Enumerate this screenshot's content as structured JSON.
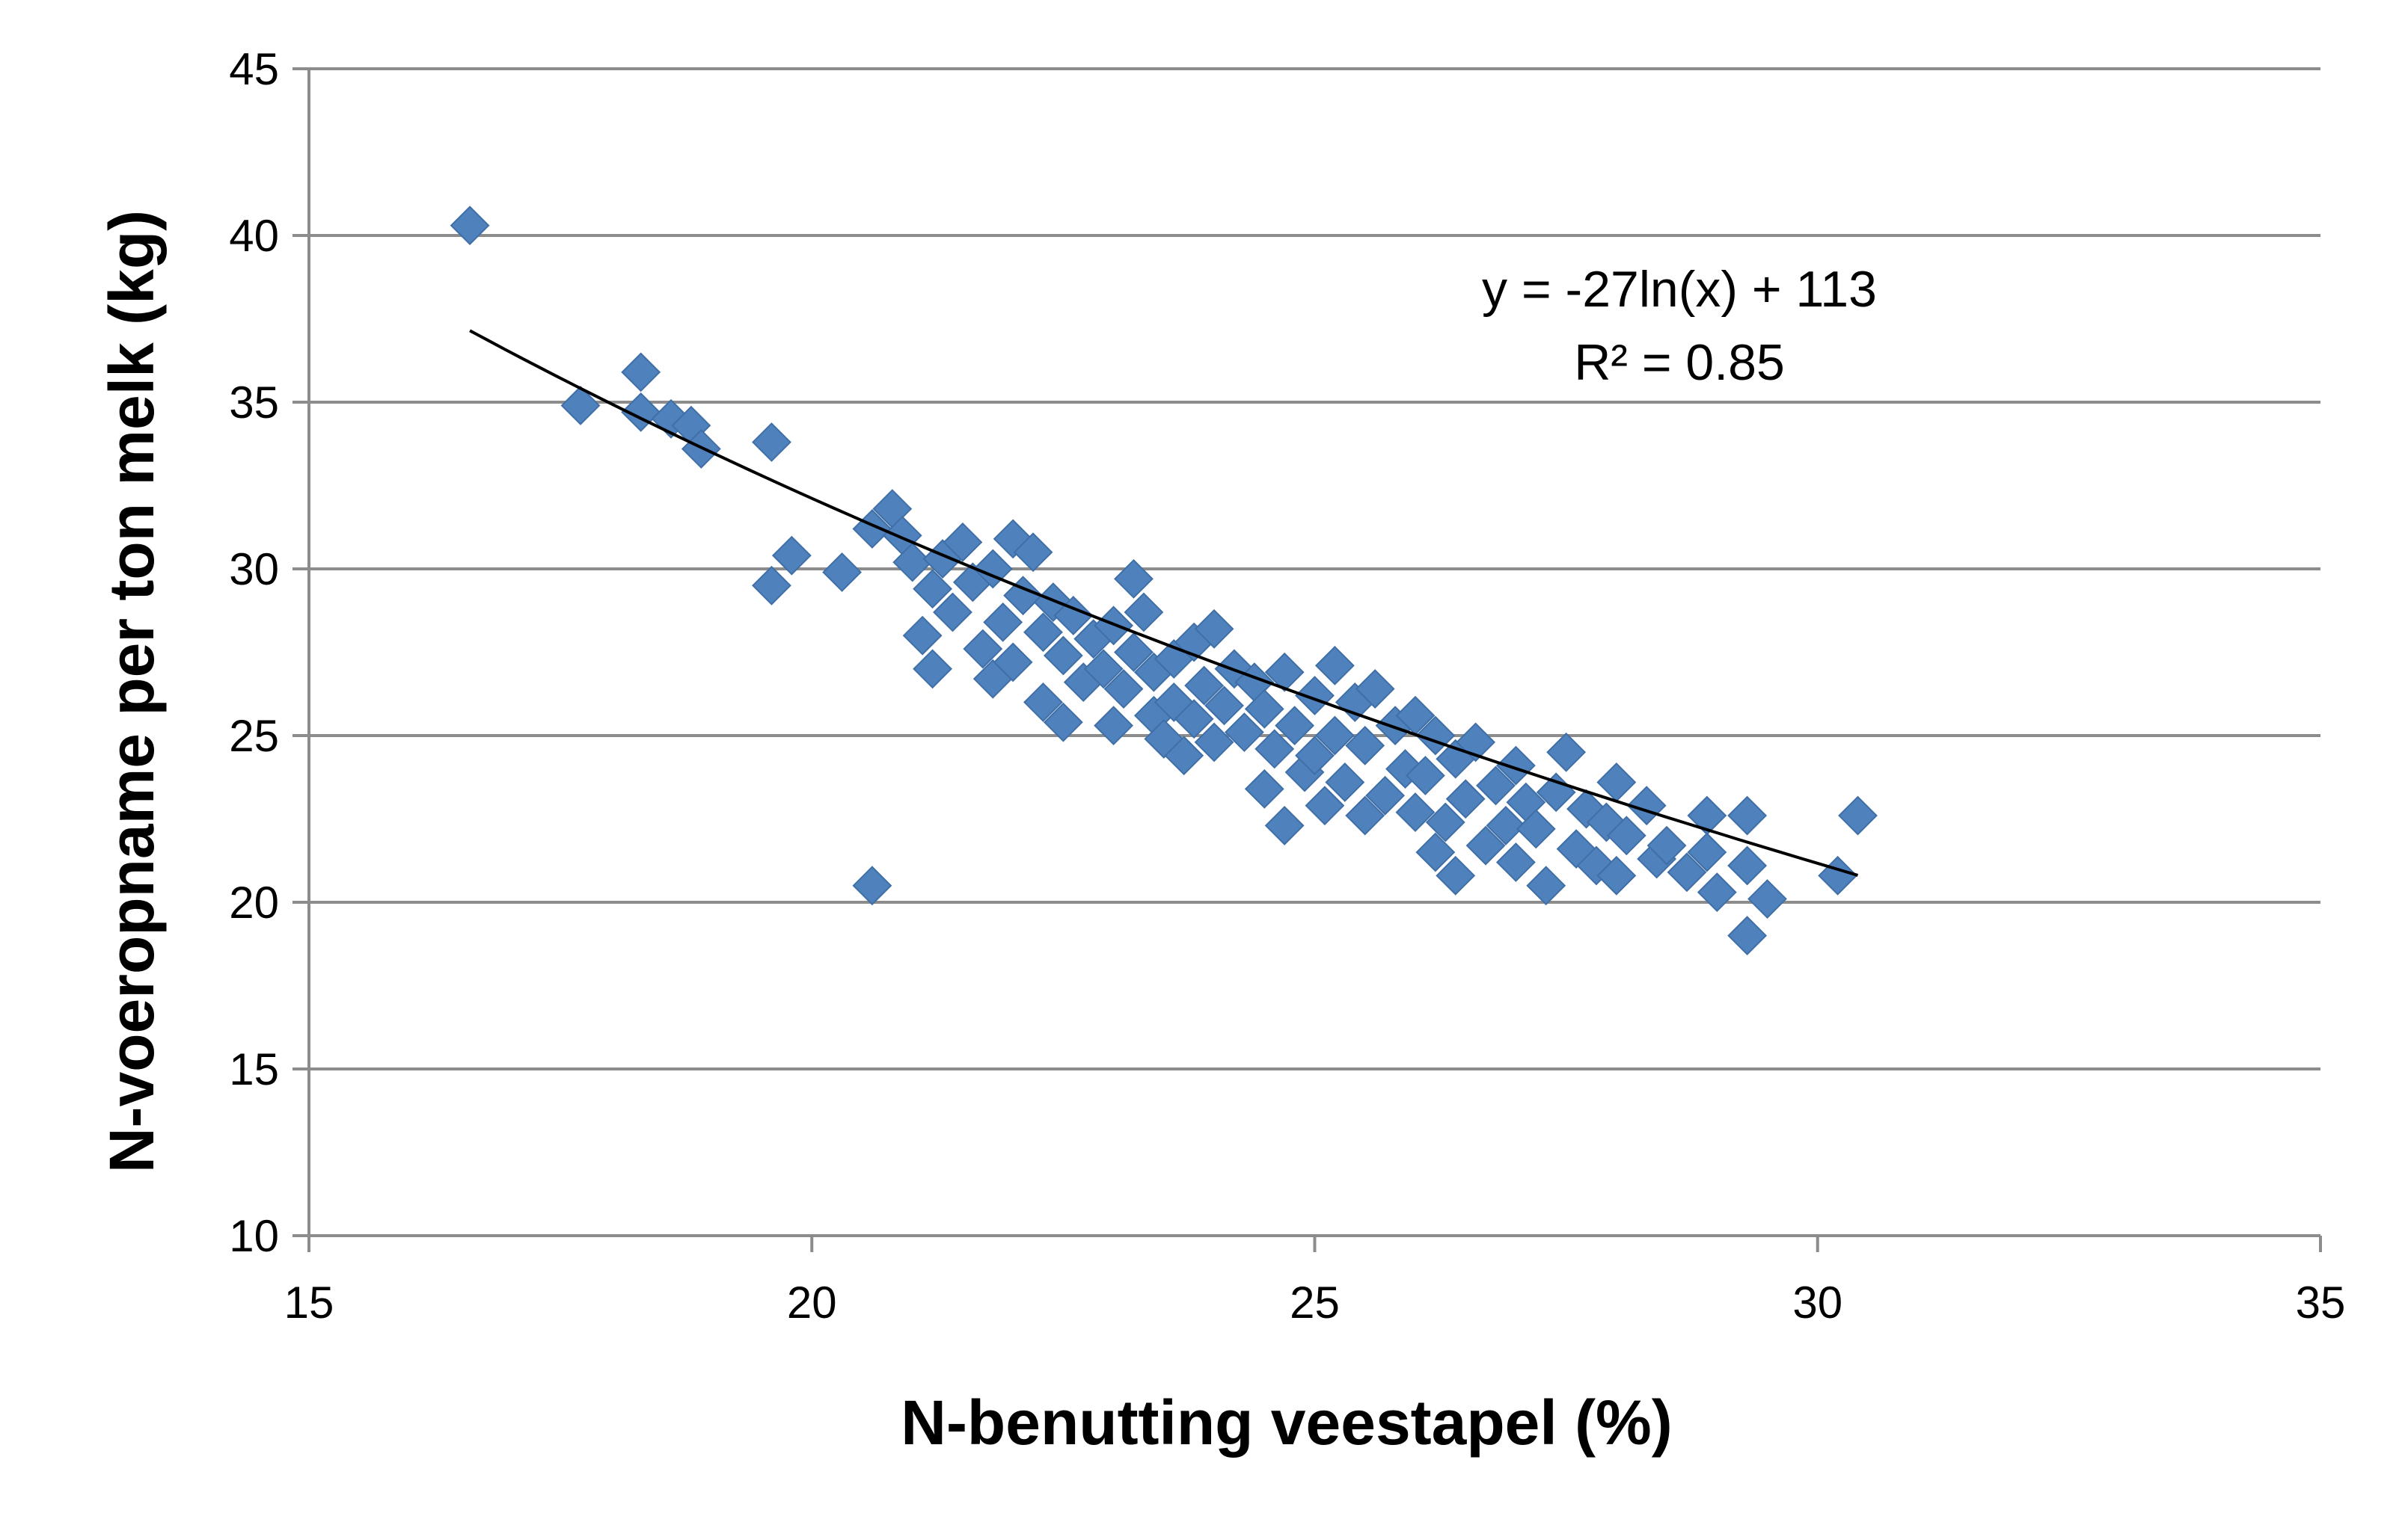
{
  "chart_data": {
    "type": "scatter",
    "xlabel": "N-benutting veestapel (%)",
    "ylabel": "N-voeropname per ton melk (kg)",
    "xlim": [
      15,
      35
    ],
    "ylim": [
      10,
      45
    ],
    "xticks": [
      "15",
      "20",
      "25",
      "30",
      "35"
    ],
    "yticks": [
      "10",
      "15",
      "20",
      "25",
      "30",
      "35",
      "40",
      "45"
    ],
    "grid": "horizontal",
    "marker": "diamond",
    "marker_color": "#4F81BD",
    "trend_color": "#000000",
    "trendline": {
      "type": "logarithmic",
      "a": -27,
      "b": 113,
      "x_range": [
        16.6,
        30.4
      ],
      "equation": "y = -27ln(x) + 113",
      "r2_label": "R² = 0.85"
    },
    "points": [
      [
        16.6,
        40.3
      ],
      [
        17.7,
        34.9
      ],
      [
        18.3,
        35.9
      ],
      [
        18.3,
        34.7
      ],
      [
        18.6,
        34.5
      ],
      [
        18.8,
        34.3
      ],
      [
        18.9,
        33.6
      ],
      [
        19.6,
        33.8
      ],
      [
        19.6,
        29.5
      ],
      [
        19.8,
        30.4
      ],
      [
        20.3,
        29.9
      ],
      [
        20.6,
        31.2
      ],
      [
        20.6,
        20.5
      ],
      [
        20.8,
        31.8
      ],
      [
        20.9,
        31.0
      ],
      [
        21.0,
        30.2
      ],
      [
        21.1,
        28.0
      ],
      [
        21.2,
        29.4
      ],
      [
        21.2,
        27.0
      ],
      [
        21.3,
        30.3
      ],
      [
        21.4,
        28.7
      ],
      [
        21.5,
        30.8
      ],
      [
        21.6,
        29.6
      ],
      [
        21.7,
        27.6
      ],
      [
        21.8,
        26.7
      ],
      [
        21.8,
        30.0
      ],
      [
        21.9,
        28.4
      ],
      [
        22.0,
        30.9
      ],
      [
        22.0,
        27.2
      ],
      [
        22.1,
        29.2
      ],
      [
        22.2,
        30.5
      ],
      [
        22.3,
        28.1
      ],
      [
        22.3,
        26.0
      ],
      [
        22.4,
        29.0
      ],
      [
        22.5,
        27.4
      ],
      [
        22.5,
        25.4
      ],
      [
        22.6,
        28.6
      ],
      [
        22.7,
        26.6
      ],
      [
        22.8,
        27.9
      ],
      [
        22.9,
        27.0
      ],
      [
        23.0,
        28.3
      ],
      [
        23.0,
        25.3
      ],
      [
        23.1,
        26.4
      ],
      [
        23.2,
        29.7
      ],
      [
        23.2,
        27.5
      ],
      [
        23.3,
        28.7
      ],
      [
        23.4,
        25.6
      ],
      [
        23.4,
        26.9
      ],
      [
        23.5,
        24.9
      ],
      [
        23.6,
        27.3
      ],
      [
        23.6,
        26.0
      ],
      [
        23.7,
        24.4
      ],
      [
        23.8,
        27.8
      ],
      [
        23.8,
        25.5
      ],
      [
        23.9,
        26.5
      ],
      [
        24.0,
        28.2
      ],
      [
        24.0,
        24.8
      ],
      [
        24.1,
        25.9
      ],
      [
        24.2,
        27.0
      ],
      [
        24.3,
        25.1
      ],
      [
        24.4,
        26.6
      ],
      [
        24.5,
        23.4
      ],
      [
        24.5,
        25.8
      ],
      [
        24.6,
        24.6
      ],
      [
        24.7,
        26.9
      ],
      [
        24.7,
        22.3
      ],
      [
        24.8,
        25.3
      ],
      [
        24.9,
        23.9
      ],
      [
        25.0,
        26.2
      ],
      [
        25.0,
        24.4
      ],
      [
        25.1,
        22.9
      ],
      [
        25.2,
        27.1
      ],
      [
        25.2,
        25.0
      ],
      [
        25.3,
        23.6
      ],
      [
        25.4,
        26.0
      ],
      [
        25.5,
        22.6
      ],
      [
        25.5,
        24.7
      ],
      [
        25.6,
        26.4
      ],
      [
        25.7,
        23.2
      ],
      [
        25.8,
        25.3
      ],
      [
        25.9,
        24.0
      ],
      [
        26.0,
        22.7
      ],
      [
        26.0,
        25.6
      ],
      [
        26.1,
        23.8
      ],
      [
        26.2,
        25.0
      ],
      [
        26.2,
        21.5
      ],
      [
        26.3,
        22.4
      ],
      [
        26.4,
        24.3
      ],
      [
        26.4,
        20.8
      ],
      [
        26.5,
        23.1
      ],
      [
        26.6,
        24.8
      ],
      [
        26.7,
        21.7
      ],
      [
        26.8,
        23.5
      ],
      [
        26.9,
        22.3
      ],
      [
        27.0,
        24.1
      ],
      [
        27.0,
        21.2
      ],
      [
        27.1,
        23.0
      ],
      [
        27.2,
        22.2
      ],
      [
        27.3,
        20.5
      ],
      [
        27.4,
        23.3
      ],
      [
        27.5,
        24.5
      ],
      [
        27.6,
        21.6
      ],
      [
        27.7,
        22.8
      ],
      [
        27.8,
        21.1
      ],
      [
        27.9,
        22.4
      ],
      [
        28.0,
        23.6
      ],
      [
        28.0,
        20.8
      ],
      [
        28.1,
        22.0
      ],
      [
        28.3,
        22.9
      ],
      [
        28.4,
        21.3
      ],
      [
        28.5,
        21.7
      ],
      [
        28.7,
        20.9
      ],
      [
        28.9,
        22.6
      ],
      [
        28.9,
        21.5
      ],
      [
        29.0,
        20.3
      ],
      [
        29.3,
        22.6
      ],
      [
        29.3,
        21.1
      ],
      [
        29.3,
        19.0
      ],
      [
        29.5,
        20.1
      ],
      [
        30.2,
        20.8
      ],
      [
        30.4,
        22.6
      ]
    ]
  }
}
